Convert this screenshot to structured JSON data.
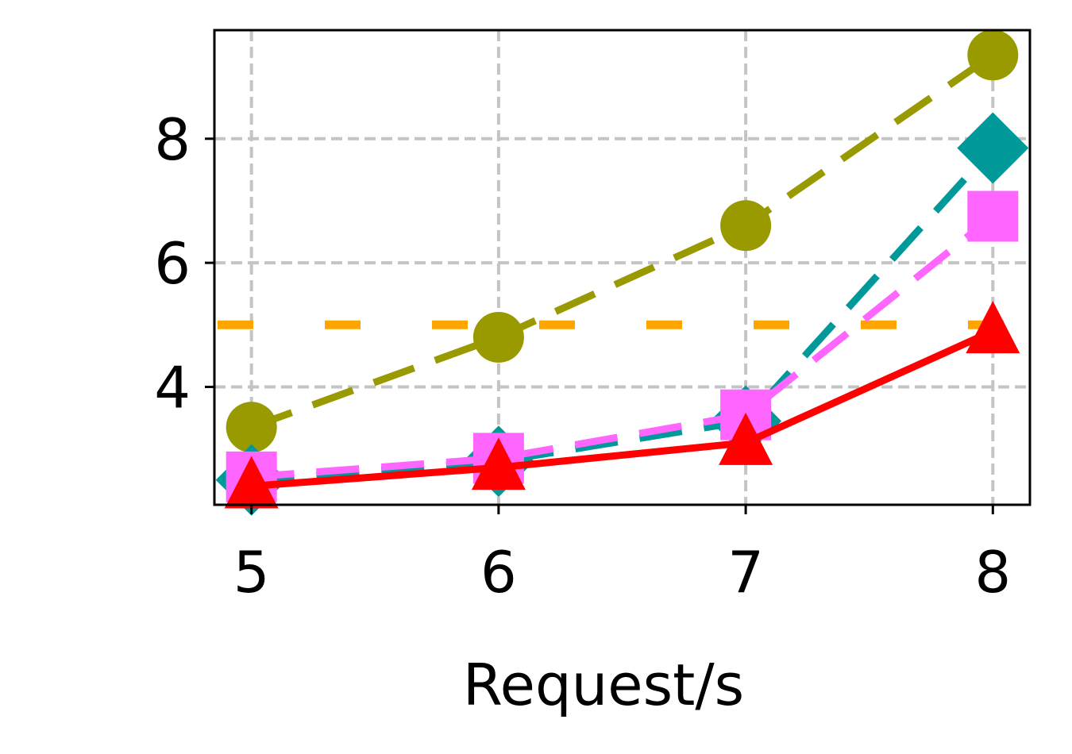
{
  "chart_data": {
    "type": "line",
    "title": "",
    "xlabel": "Request/s",
    "ylabel": "",
    "x": [
      5,
      6,
      7,
      8
    ],
    "xlim": [
      4.85,
      8.15
    ],
    "ylim": [
      2.1,
      9.75
    ],
    "xticks": [
      5,
      6,
      7,
      8
    ],
    "yticks": [
      4,
      6,
      8
    ],
    "grid": true,
    "legend": "none",
    "reference_line": {
      "y": 5.0,
      "color": "#ffa500",
      "style": "dashed"
    },
    "series": [
      {
        "color": "#999900",
        "marker": "circle",
        "line_style": "dashed",
        "values": [
          3.35,
          4.8,
          6.6,
          9.35
        ]
      },
      {
        "color": "#009999",
        "marker": "diamond",
        "line_style": "dashed",
        "values": [
          2.5,
          2.8,
          3.45,
          7.85
        ]
      },
      {
        "color": "#ff66ff",
        "marker": "square",
        "line_style": "dashed",
        "values": [
          2.55,
          2.85,
          3.55,
          6.75
        ]
      },
      {
        "color": "#ff0000",
        "marker": "triangle",
        "line_style": "solid",
        "values": [
          2.4,
          2.7,
          3.1,
          4.9
        ]
      }
    ]
  }
}
